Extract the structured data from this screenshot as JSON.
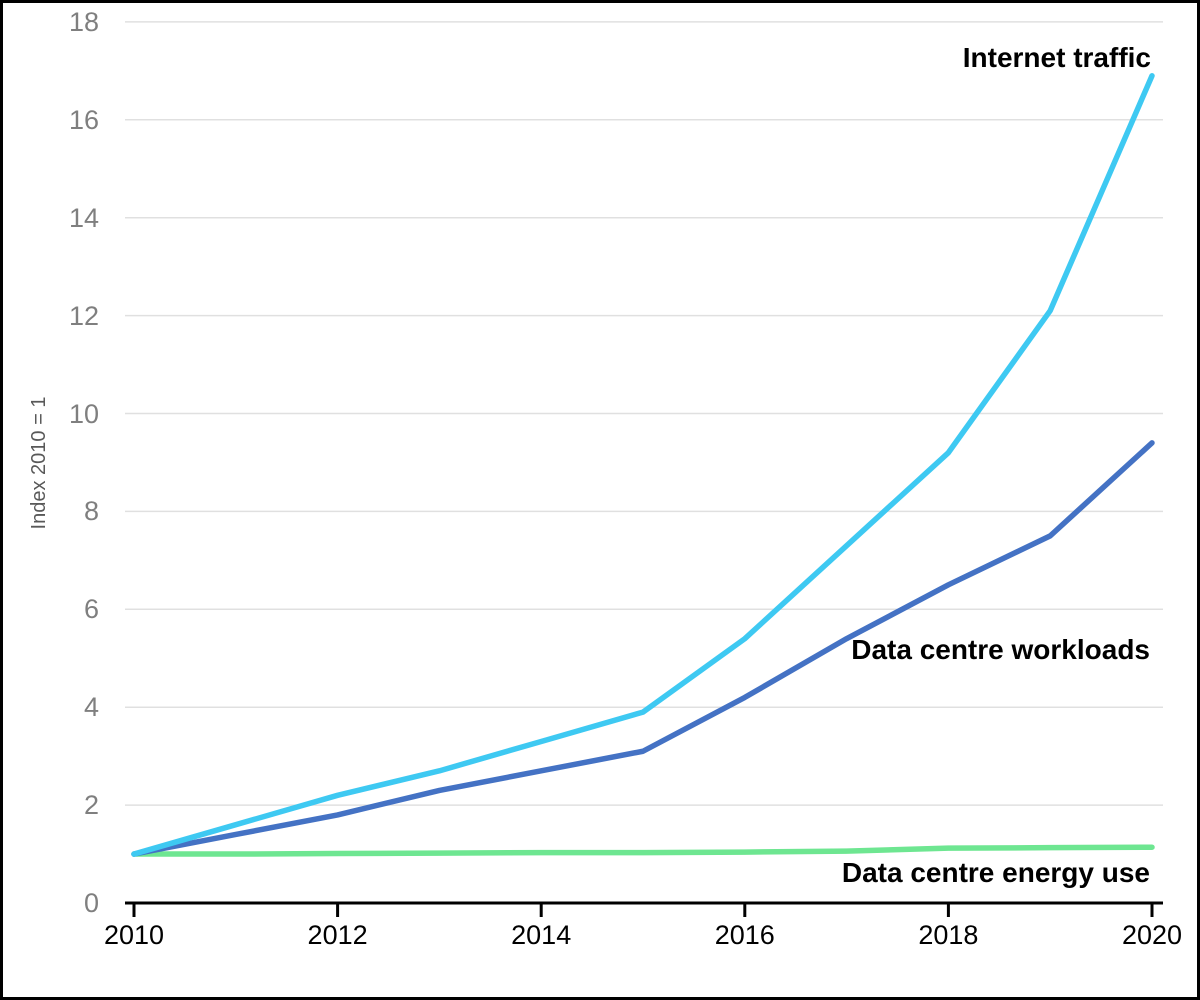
{
  "chart_data": {
    "type": "line",
    "title": "",
    "xlabel": "",
    "ylabel": "Index 2010 = 1",
    "x": [
      2010,
      2011,
      2012,
      2013,
      2014,
      2015,
      2016,
      2017,
      2018,
      2019,
      2020
    ],
    "series": [
      {
        "name": "Internet traffic",
        "color": "#3EC9F2",
        "values": [
          1.0,
          1.6,
          2.2,
          2.7,
          3.3,
          3.9,
          5.4,
          7.3,
          9.2,
          12.1,
          16.9
        ]
      },
      {
        "name": "Data centre workloads",
        "color": "#4472C4",
        "values": [
          1.0,
          1.4,
          1.8,
          2.3,
          2.7,
          3.1,
          4.2,
          5.4,
          6.5,
          7.5,
          9.4
        ]
      },
      {
        "name": "Data centre energy use",
        "color": "#6EE691",
        "values": [
          1.0,
          1.0,
          1.01,
          1.02,
          1.03,
          1.03,
          1.04,
          1.06,
          1.12,
          1.13,
          1.14
        ]
      }
    ],
    "xticks": [
      2010,
      2012,
      2014,
      2016,
      2018,
      2020
    ],
    "yticks": [
      0,
      2,
      4,
      6,
      8,
      10,
      12,
      14,
      16,
      18
    ],
    "xlim": [
      2010,
      2020
    ],
    "ylim": [
      0,
      18
    ],
    "grid": "horizontal gridlines on, light gray",
    "legend": "inline labels at line ends, bold black"
  },
  "colors": {
    "gridline": "#E0E0E0",
    "axis": "#000000",
    "ytick_text": "#7F7F7F",
    "xtick_text": "#000000",
    "yaxis_title_text": "#595959",
    "background": "#FFFFFF",
    "border": "#000000"
  }
}
